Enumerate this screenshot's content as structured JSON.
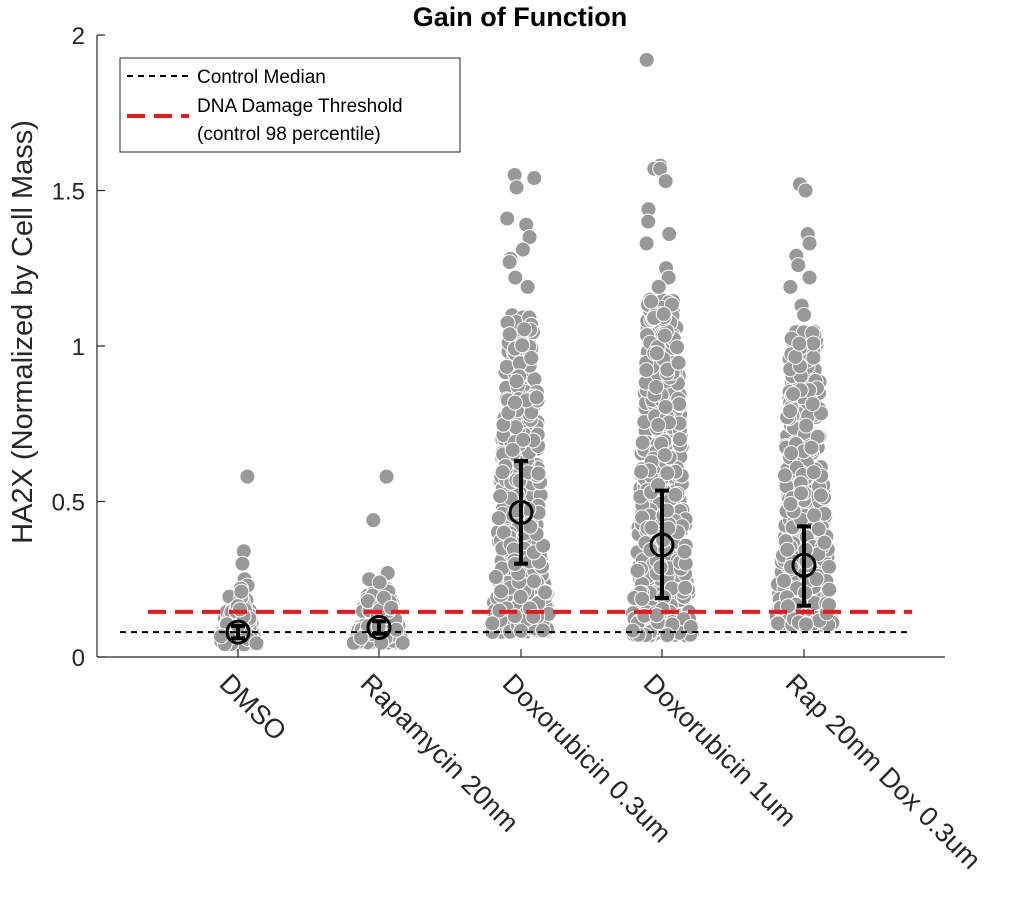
{
  "chart_data": {
    "type": "scatter",
    "title": "Gain of Function",
    "ylabel": "HA2X (Normalized by Cell Mass)",
    "xlabel": "",
    "ylim": [
      0,
      2
    ],
    "yticks": [
      0,
      0.5,
      1,
      1.5,
      2
    ],
    "ytick_labels": [
      "0",
      "0.5",
      "1",
      "1.5",
      "2"
    ],
    "grid": false,
    "legend_position": "top-left",
    "categories": [
      "DMSO",
      "Rapamycin 20nm",
      "Doxorubicin 0.3um",
      "Doxorubicin 1um",
      "Rap 20nm Dox 0.3um"
    ],
    "groups": [
      {
        "category": "DMSO",
        "median": 0.08,
        "err_low": 0.06,
        "err_high": 0.1,
        "n_points": 160,
        "bulk_min": 0.04,
        "bulk_max": 0.2,
        "spread": 0.28,
        "outliers": [
          0.58,
          0.34,
          0.3,
          0.25,
          0.23,
          0.22,
          0.21
        ]
      },
      {
        "category": "Rapamycin 20nm",
        "median": 0.095,
        "err_low": 0.075,
        "err_high": 0.115,
        "n_points": 190,
        "bulk_min": 0.045,
        "bulk_max": 0.22,
        "spread": 0.36,
        "outliers": [
          0.58,
          0.44,
          0.27,
          0.25,
          0.24
        ]
      },
      {
        "category": "Doxorubicin 0.3um",
        "median": 0.465,
        "err_low": 0.3,
        "err_high": 0.63,
        "n_points": 500,
        "bulk_min": 0.08,
        "bulk_max": 1.1,
        "spread": 0.42,
        "outliers": [
          1.55,
          1.54,
          1.51,
          1.41,
          1.39,
          1.35,
          1.31,
          1.28,
          1.27,
          1.22,
          1.19
        ]
      },
      {
        "category": "Doxorubicin 1um",
        "median": 0.36,
        "err_low": 0.19,
        "err_high": 0.535,
        "n_points": 560,
        "bulk_min": 0.07,
        "bulk_max": 1.15,
        "spread": 0.44,
        "outliers": [
          1.92,
          1.58,
          1.57,
          1.57,
          1.53,
          1.44,
          1.4,
          1.36,
          1.33,
          1.25,
          1.22,
          1.19
        ]
      },
      {
        "category": "Rap 20nm Dox 0.3um",
        "median": 0.295,
        "err_low": 0.165,
        "err_high": 0.42,
        "n_points": 430,
        "bulk_min": 0.1,
        "bulk_max": 1.05,
        "spread": 0.42,
        "outliers": [
          1.52,
          1.5,
          1.36,
          1.33,
          1.29,
          1.26,
          1.22,
          1.19,
          1.13,
          1.1
        ]
      }
    ],
    "reference_lines": [
      {
        "name": "Control Median",
        "y": 0.08,
        "color": "#000000",
        "style": "dashed"
      },
      {
        "name": "DNA Damage Threshold",
        "name_line2": "(control 98 percentile)",
        "y": 0.145,
        "color": "#e8191c",
        "style": "dashed-thick"
      }
    ],
    "point_color": "#999999",
    "point_edge": "#ffffff",
    "summary_color": "#000000"
  }
}
